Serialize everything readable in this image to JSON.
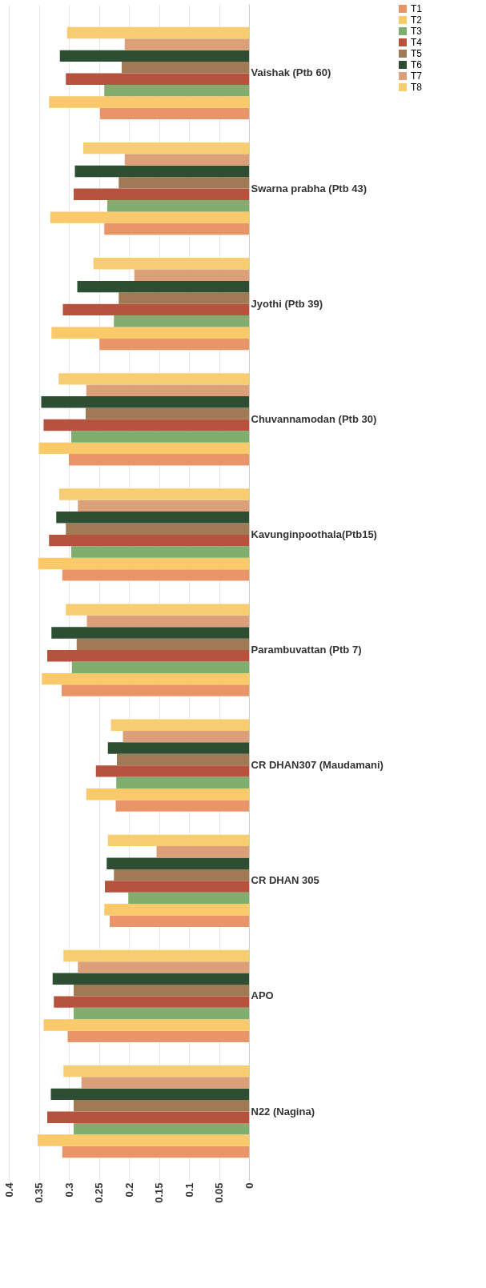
{
  "chart_data": {
    "type": "bar",
    "orientation": "horizontal",
    "categories": [
      "Vaishak (Ptb 60)",
      "Swarna prabha (Ptb 43)",
      "Jyothi (Ptb 39)",
      "Chuvannamodan (Ptb 30)",
      "Kavunginpoothala(Ptb15)",
      "Parambuvattan (Ptb 7)",
      "CR DHAN307 (Maudamani)",
      "CR DHAN 305",
      "APO",
      "N22 (Nagina)"
    ],
    "series": [
      {
        "name": "T1",
        "color": "#e8956a",
        "values": [
          0.248,
          0.241,
          0.249,
          0.3,
          0.311,
          0.312,
          0.222,
          0.232,
          0.302,
          0.311
        ]
      },
      {
        "name": "T2",
        "color": "#f9c96b",
        "values": [
          0.333,
          0.331,
          0.329,
          0.35,
          0.351,
          0.345,
          0.271,
          0.241,
          0.342,
          0.352
        ]
      },
      {
        "name": "T3",
        "color": "#7fae6e",
        "values": [
          0.241,
          0.236,
          0.225,
          0.296,
          0.296,
          0.295,
          0.221,
          0.201,
          0.292,
          0.292
        ]
      },
      {
        "name": "T4",
        "color": "#b5533e",
        "values": [
          0.305,
          0.292,
          0.31,
          0.342,
          0.333,
          0.336,
          0.255,
          0.24,
          0.325,
          0.336
        ]
      },
      {
        "name": "T5",
        "color": "#a07a55",
        "values": [
          0.212,
          0.217,
          0.217,
          0.272,
          0.305,
          0.287,
          0.22,
          0.225,
          0.292,
          0.292
        ]
      },
      {
        "name": "T6",
        "color": "#2e4e34",
        "values": [
          0.315,
          0.29,
          0.286,
          0.346,
          0.321,
          0.329,
          0.235,
          0.237,
          0.327,
          0.33
        ]
      },
      {
        "name": "T7",
        "color": "#dba07a",
        "values": [
          0.207,
          0.207,
          0.191,
          0.271,
          0.285,
          0.27,
          0.21,
          0.154,
          0.285,
          0.279
        ]
      },
      {
        "name": "T8",
        "color": "#f7cd72",
        "values": [
          0.303,
          0.276,
          0.259,
          0.317,
          0.316,
          0.305,
          0.23,
          0.235,
          0.309,
          0.309
        ]
      }
    ],
    "xlim": [
      0.4,
      0
    ],
    "xticks": [
      0.4,
      0.35,
      0.3,
      0.25,
      0.2,
      0.15,
      0.1,
      0.05,
      0
    ],
    "grid": "x",
    "legend": "right"
  }
}
